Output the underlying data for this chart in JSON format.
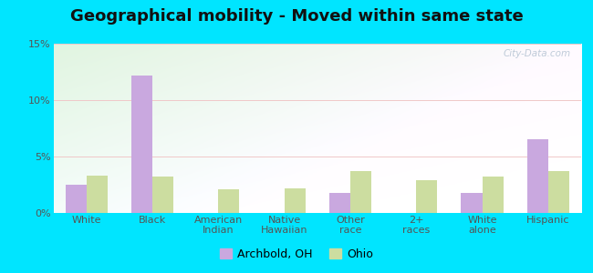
{
  "title": "Geographical mobility - Moved within same state",
  "categories": [
    "White",
    "Black",
    "American\nIndian",
    "Native\nHawaiian",
    "Other\nrace",
    "2+\nraces",
    "White\nalone",
    "Hispanic"
  ],
  "archbold_values": [
    2.5,
    12.2,
    0,
    0,
    1.8,
    0,
    1.8,
    6.5
  ],
  "ohio_values": [
    3.3,
    3.2,
    2.1,
    2.2,
    3.7,
    2.9,
    3.2,
    3.7
  ],
  "archbold_color": "#c9a8df",
  "ohio_color": "#ccdda0",
  "bar_width": 0.32,
  "ylim": [
    0,
    15
  ],
  "yticks": [
    0,
    5,
    10,
    15
  ],
  "ytick_labels": [
    "0%",
    "5%",
    "10%",
    "15%"
  ],
  "legend_archbold": "Archbold, OH",
  "legend_ohio": "Ohio",
  "background_color": "#00e5ff",
  "watermark": "City-Data.com",
  "title_fontsize": 13,
  "axis_fontsize": 8,
  "legend_fontsize": 9,
  "grad_top_left": "#e8f8ee",
  "grad_top_right": "#f8fff8",
  "grad_bottom": "#fffff5"
}
